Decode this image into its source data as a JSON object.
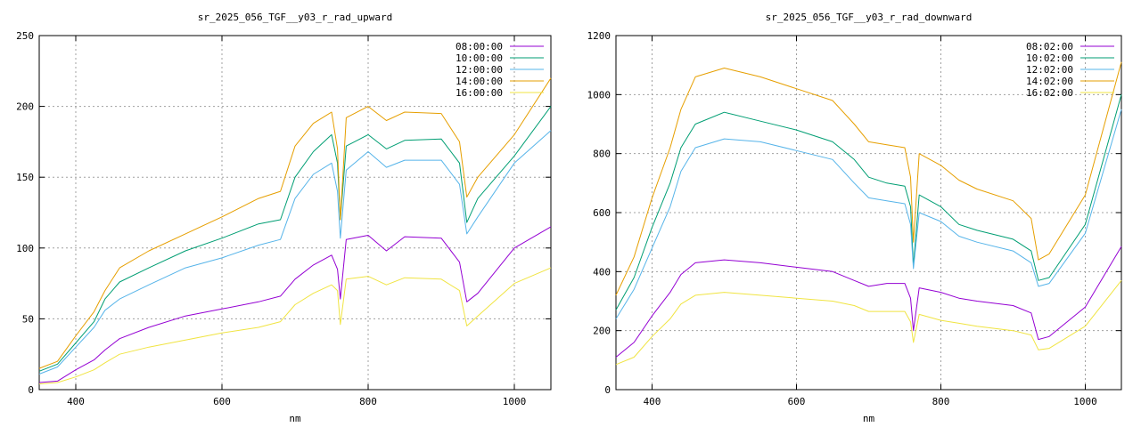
{
  "chart_data": [
    {
      "type": "line",
      "title": "sr_2025_056_TGF__y03_r_rad_upward",
      "xlabel": "nm",
      "ylabel": "",
      "xlim": [
        350,
        1050
      ],
      "ylim": [
        0,
        250
      ],
      "xticks": [
        400,
        600,
        800,
        1000
      ],
      "yticks": [
        0,
        50,
        100,
        150,
        200,
        250
      ],
      "grid": true,
      "legend_position": "top-right",
      "x": [
        350,
        375,
        400,
        425,
        440,
        460,
        500,
        550,
        600,
        650,
        680,
        700,
        725,
        750,
        758,
        762,
        770,
        800,
        825,
        850,
        900,
        925,
        935,
        950,
        1000,
        1050
      ],
      "series": [
        {
          "name": "08:00:00",
          "color": "#9400d3",
          "values": [
            5,
            6,
            14,
            21,
            28,
            36,
            44,
            52,
            57,
            62,
            66,
            78,
            88,
            95,
            85,
            64,
            106,
            109,
            98,
            108,
            107,
            90,
            62,
            68,
            100,
            115
          ]
        },
        {
          "name": "10:00:00",
          "color": "#009e73",
          "values": [
            13,
            18,
            33,
            48,
            64,
            76,
            86,
            98,
            107,
            117,
            120,
            150,
            168,
            180,
            160,
            120,
            172,
            180,
            170,
            176,
            177,
            160,
            118,
            135,
            165,
            200
          ]
        },
        {
          "name": "12:00:00",
          "color": "#56b4e9",
          "values": [
            11,
            16,
            30,
            44,
            56,
            64,
            74,
            86,
            93,
            102,
            106,
            135,
            152,
            160,
            140,
            107,
            155,
            168,
            157,
            162,
            162,
            145,
            110,
            122,
            160,
            183
          ]
        },
        {
          "name": "14:00:00",
          "color": "#e69f00",
          "values": [
            15,
            20,
            38,
            55,
            70,
            86,
            98,
            110,
            122,
            135,
            140,
            172,
            188,
            196,
            170,
            120,
            192,
            200,
            190,
            196,
            195,
            175,
            136,
            150,
            180,
            220
          ]
        },
        {
          "name": "16:00:00",
          "color": "#f0e442",
          "values": [
            4,
            5,
            9,
            14,
            19,
            25,
            30,
            35,
            40,
            44,
            48,
            60,
            68,
            74,
            70,
            46,
            78,
            80,
            74,
            79,
            78,
            70,
            45,
            52,
            75,
            86
          ]
        }
      ]
    },
    {
      "type": "line",
      "title": "sr_2025_056_TGF__y03_r_rad_downward",
      "xlabel": "nm",
      "ylabel": "",
      "xlim": [
        350,
        1050
      ],
      "ylim": [
        0,
        1200
      ],
      "xticks": [
        400,
        600,
        800,
        1000
      ],
      "yticks": [
        0,
        200,
        400,
        600,
        800,
        1000,
        1200
      ],
      "grid": true,
      "legend_position": "top-right",
      "x": [
        350,
        375,
        400,
        425,
        440,
        460,
        500,
        550,
        600,
        650,
        680,
        700,
        725,
        750,
        758,
        762,
        770,
        800,
        825,
        850,
        900,
        925,
        935,
        950,
        1000,
        1050
      ],
      "series": [
        {
          "name": "08:02:00",
          "color": "#9400d3",
          "values": [
            110,
            160,
            250,
            330,
            390,
            430,
            440,
            430,
            415,
            400,
            370,
            350,
            360,
            360,
            310,
            200,
            345,
            330,
            310,
            300,
            285,
            260,
            170,
            180,
            280,
            485
          ]
        },
        {
          "name": "10:02:00",
          "color": "#009e73",
          "values": [
            270,
            380,
            550,
            700,
            820,
            900,
            940,
            910,
            880,
            840,
            780,
            720,
            700,
            690,
            620,
            420,
            660,
            620,
            560,
            540,
            510,
            470,
            370,
            380,
            560,
            1000
          ]
        },
        {
          "name": "12:02:00",
          "color": "#56b4e9",
          "values": [
            240,
            340,
            480,
            620,
            740,
            820,
            850,
            840,
            810,
            780,
            700,
            650,
            640,
            630,
            560,
            410,
            600,
            570,
            520,
            500,
            470,
            430,
            350,
            360,
            530,
            950
          ]
        },
        {
          "name": "14:02:00",
          "color": "#e69f00",
          "values": [
            320,
            450,
            650,
            820,
            950,
            1060,
            1090,
            1060,
            1020,
            980,
            900,
            840,
            830,
            820,
            720,
            500,
            800,
            760,
            710,
            680,
            640,
            580,
            440,
            460,
            660,
            1110
          ]
        },
        {
          "name": "16:02:00",
          "color": "#f0e442",
          "values": [
            85,
            110,
            180,
            240,
            290,
            320,
            330,
            320,
            310,
            300,
            285,
            265,
            265,
            265,
            230,
            160,
            255,
            235,
            225,
            215,
            200,
            185,
            135,
            140,
            215,
            370
          ]
        }
      ]
    }
  ]
}
